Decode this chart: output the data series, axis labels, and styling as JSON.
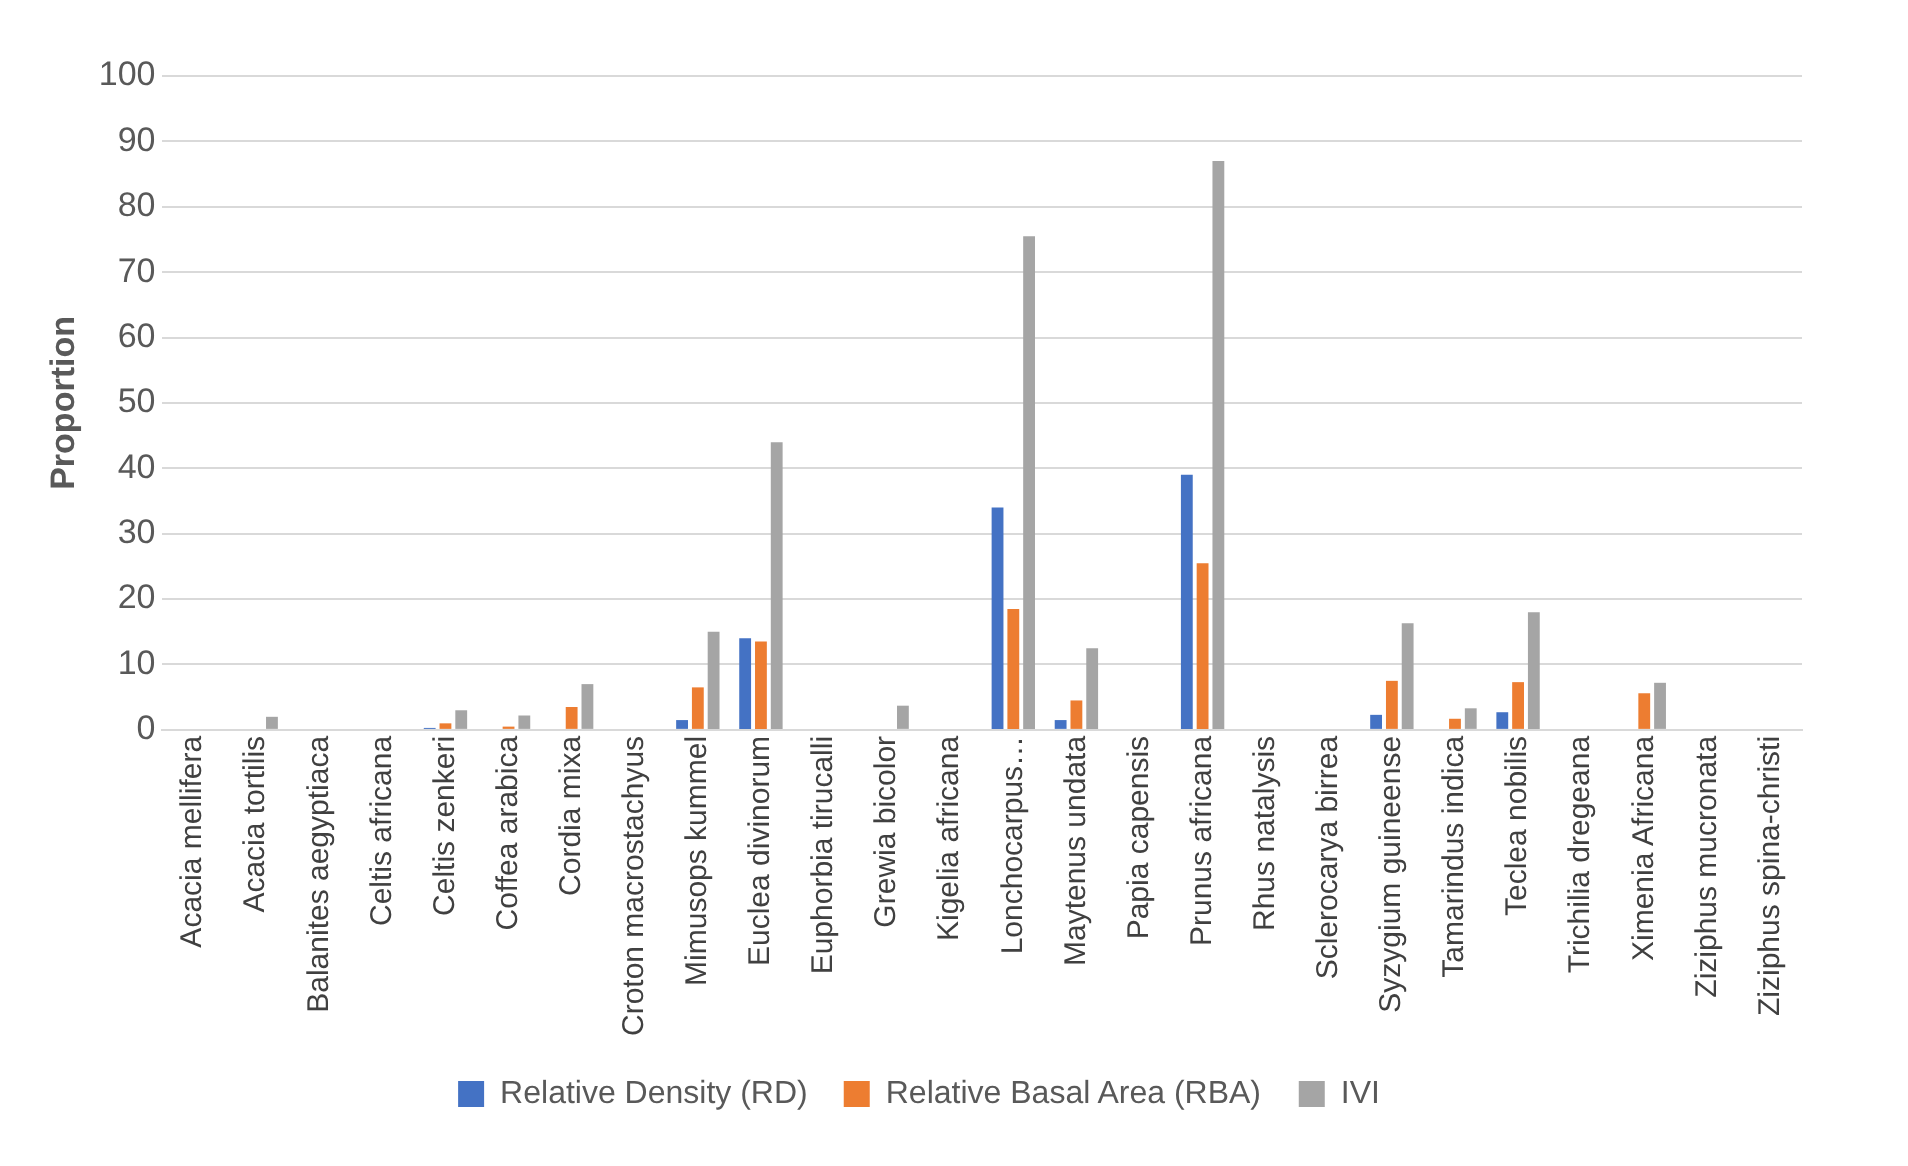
{
  "chart_data": {
    "type": "bar",
    "ylabel": "Proportion",
    "categories": [
      "Acacia mellifera",
      "Acacia tortilis",
      "Balanites aegyptiaca",
      "Celtis africana",
      "Celtis zenkeri",
      "Coffea arabica",
      "Cordia mixa",
      "Croton macrostachyus",
      "Mimusops kummel",
      "Euclea divinorum",
      "Euphorbia tirucalli",
      "Grewia bicolor",
      "Kigelia africana",
      "Lonchocarpus…",
      "Maytenus undata",
      "Papia capensis",
      "Prunus africana",
      "Rhus natalysis",
      "Sclerocarya birrea",
      "Syzygium guineense",
      "Tamarindus indica",
      "Teclea nobilis",
      "Trichilia dregeana",
      "Ximenia Africana",
      "Ziziphus mucronata",
      "Ziziphus spina-christi"
    ],
    "series": [
      {
        "name": "Relative Density (RD)",
        "color": "#4472c4",
        "values": [
          0,
          0,
          0,
          0,
          0.3,
          null,
          null,
          0,
          1.5,
          14,
          0,
          null,
          0,
          34,
          1.5,
          0,
          39,
          0,
          0,
          2.3,
          0,
          2.7,
          0,
          0,
          0,
          0
        ]
      },
      {
        "name": "Relative Basal Area (RBA)",
        "color": "#ed7d31",
        "values": [
          0,
          0,
          0,
          0,
          1,
          0.5,
          3.5,
          0,
          6.5,
          13.5,
          0,
          null,
          0,
          18.5,
          4.5,
          0,
          25.5,
          0,
          0,
          7.5,
          1.7,
          7.3,
          0,
          5.6,
          0,
          0
        ]
      },
      {
        "name": "IVI",
        "color": "#a5a5a5",
        "values": [
          0,
          2,
          0,
          0,
          3,
          2.2,
          7,
          0,
          15,
          44,
          0,
          3.7,
          0,
          75.5,
          12.5,
          0,
          87,
          0,
          0,
          16.3,
          3.3,
          18,
          0,
          7.2,
          0,
          0
        ]
      }
    ],
    "ylim": [
      0,
      100
    ],
    "yticks": [
      0,
      10,
      20,
      30,
      40,
      50,
      60,
      70,
      80,
      90,
      100
    ],
    "grid": "y",
    "legend": "bottom"
  }
}
